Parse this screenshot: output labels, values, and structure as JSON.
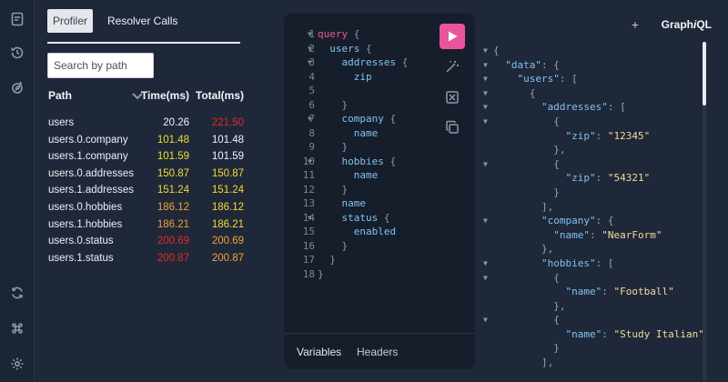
{
  "rail": {
    "icons": [
      "document-icon",
      "history-icon",
      "explorer-icon",
      "refresh-icon",
      "command-icon",
      "settings-icon"
    ]
  },
  "profiler": {
    "tabs": [
      "Profiler",
      "Resolver Calls"
    ],
    "search_placeholder": "Search by path",
    "columns": {
      "path": "Path",
      "time": "Time(ms)",
      "total": "Total(ms)"
    },
    "rows": [
      {
        "path": "users",
        "time": "20.26",
        "total": "221.50"
      },
      {
        "path": "users.0.company",
        "time": "101.48",
        "total": "101.48"
      },
      {
        "path": "users.1.company",
        "time": "101.59",
        "total": "101.59"
      },
      {
        "path": "users.0.addresses",
        "time": "150.87",
        "total": "150.87"
      },
      {
        "path": "users.1.addresses",
        "time": "151.24",
        "total": "151.24"
      },
      {
        "path": "users.0.hobbies",
        "time": "186.12",
        "total": "186.12"
      },
      {
        "path": "users.1.hobbies",
        "time": "186.21",
        "total": "186.21"
      },
      {
        "path": "users.0.status",
        "time": "200.69",
        "total": "200.69"
      },
      {
        "path": "users.1.status",
        "time": "200.87",
        "total": "200.87"
      }
    ]
  },
  "editor": {
    "lines": [
      "1",
      "2",
      "3",
      "4",
      "5",
      "6",
      "7",
      "8",
      "9",
      "10",
      "11",
      "12",
      "13",
      "14",
      "15",
      "16",
      "17",
      "18"
    ],
    "footer_tabs": {
      "variables": "Variables",
      "headers": "Headers"
    }
  },
  "response": {
    "brand_prefix": "Graph",
    "brand_italic": "i",
    "brand_suffix": "QL",
    "plus": "+"
  },
  "colors": {
    "accent": "#e9559b",
    "background": "#1f2838",
    "editor_bg": "#161e2b",
    "keyword": "#ec5a93",
    "field": "#7fc2f5",
    "string": "#f3d9a0",
    "time_white": "#f3f5f8",
    "time_yellow": "#f4dd35",
    "time_orange": "#f2a13a",
    "time_red": "#e52a2a"
  }
}
